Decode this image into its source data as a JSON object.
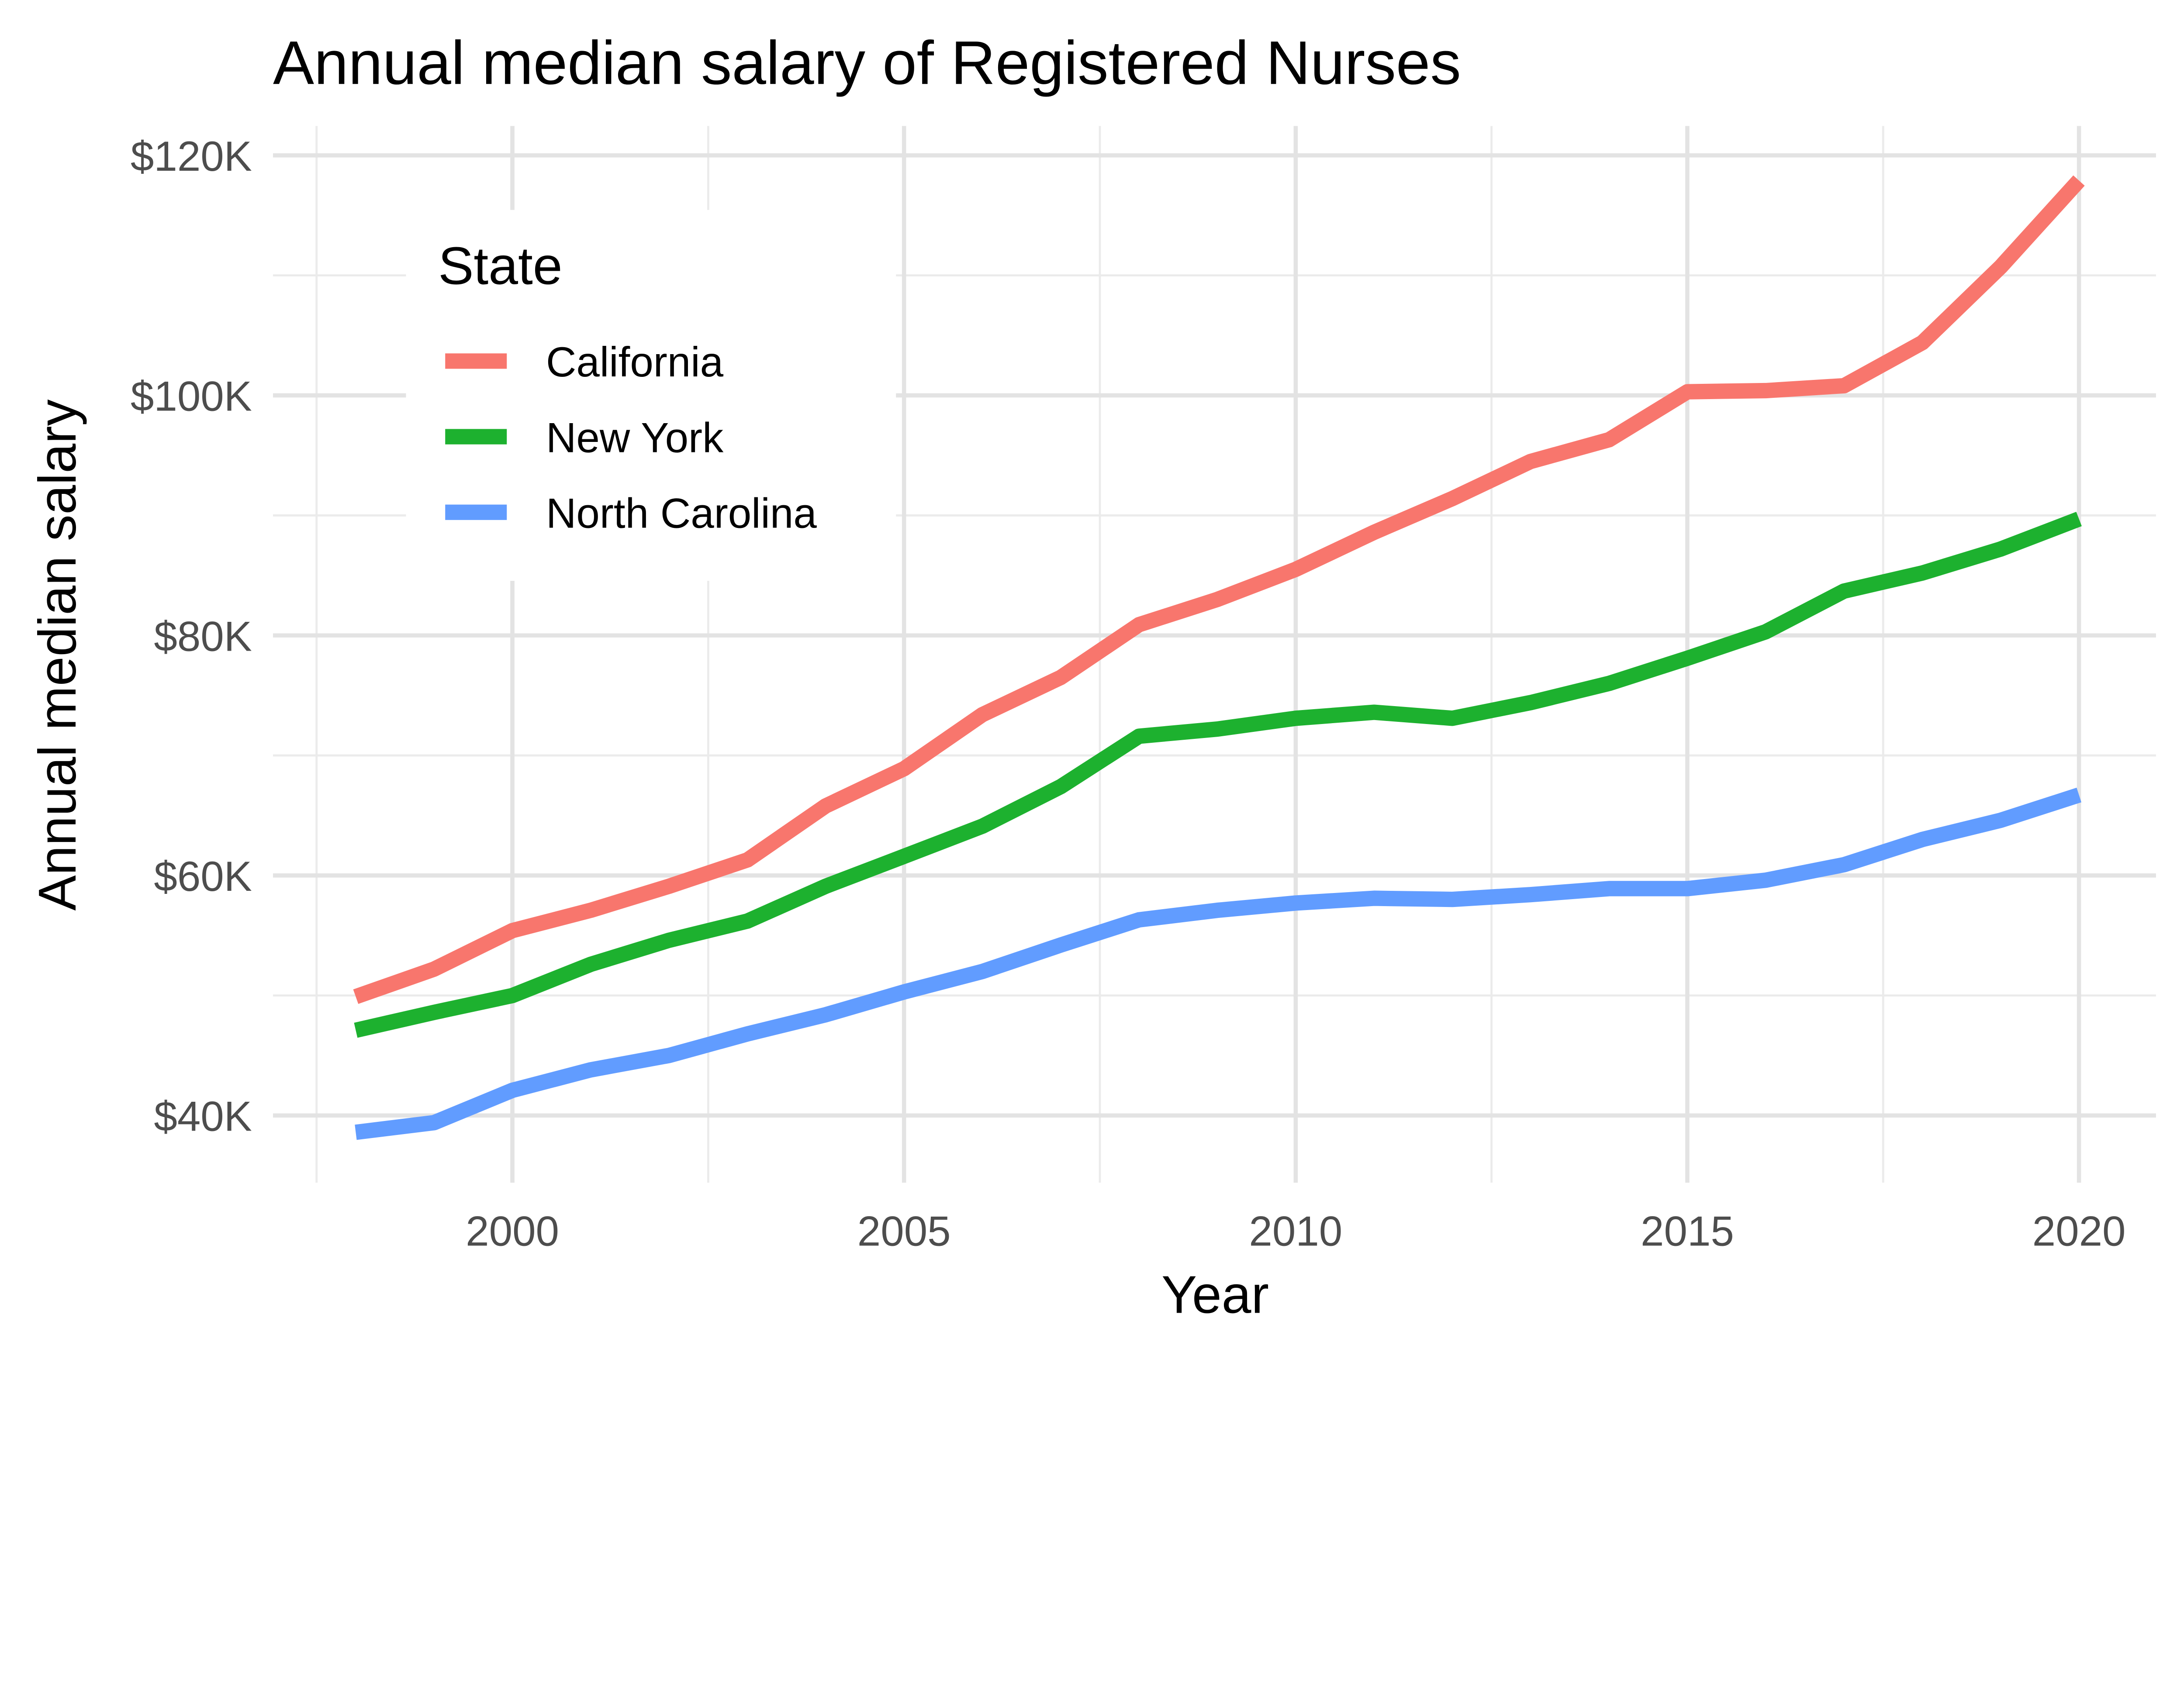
{
  "chart_data": {
    "type": "line",
    "title": "Annual median salary of Registered Nurses",
    "xlabel": "Year",
    "ylabel": "Annual median salary",
    "xlim": [
      1997.4,
      2020.8
    ],
    "ylim": [
      34.5,
      122.5
    ],
    "x_ticks": [
      2000,
      2005,
      2010,
      2015,
      2020
    ],
    "x_tick_labels": [
      "2000",
      "2005",
      "2010",
      "2015",
      "2020"
    ],
    "y_ticks": [
      40,
      60,
      80,
      100,
      120
    ],
    "y_tick_labels": [
      "$40K",
      "$60K",
      "$80K",
      "$100K",
      "$120K"
    ],
    "grid": true,
    "legend": {
      "title": "State",
      "placement": "top-left inside"
    },
    "x": [
      1998,
      1999,
      2000,
      2001,
      2002,
      2003,
      2004,
      2005,
      2006,
      2007,
      2008,
      2009,
      2010,
      2011,
      2012,
      2013,
      2014,
      2015,
      2016,
      2017,
      2018,
      2019,
      2020
    ],
    "series": [
      {
        "name": "California",
        "color": "#F8766D",
        "values": [
          49.9,
          52.2,
          55.4,
          57.1,
          59.1,
          61.3,
          65.8,
          68.9,
          73.4,
          76.5,
          80.9,
          83.0,
          85.5,
          88.6,
          91.4,
          94.5,
          96.3,
          100.3,
          100.4,
          100.8,
          104.4,
          110.7,
          117.9
        ]
      },
      {
        "name": "New York",
        "color": "#1DB12F",
        "values": [
          47.1,
          48.6,
          50.0,
          52.6,
          54.6,
          56.2,
          59.1,
          61.6,
          64.1,
          67.4,
          71.6,
          72.2,
          73.1,
          73.6,
          73.1,
          74.4,
          76.0,
          78.1,
          80.3,
          83.7,
          85.2,
          87.2,
          89.7
        ]
      },
      {
        "name": "North Carolina",
        "color": "#619CFF",
        "values": [
          38.6,
          39.4,
          42.1,
          43.8,
          45.0,
          46.8,
          48.4,
          50.3,
          52.0,
          54.2,
          56.3,
          57.1,
          57.7,
          58.1,
          58.0,
          58.4,
          58.9,
          58.9,
          59.6,
          60.9,
          63.0,
          64.6,
          66.7
        ]
      }
    ]
  }
}
